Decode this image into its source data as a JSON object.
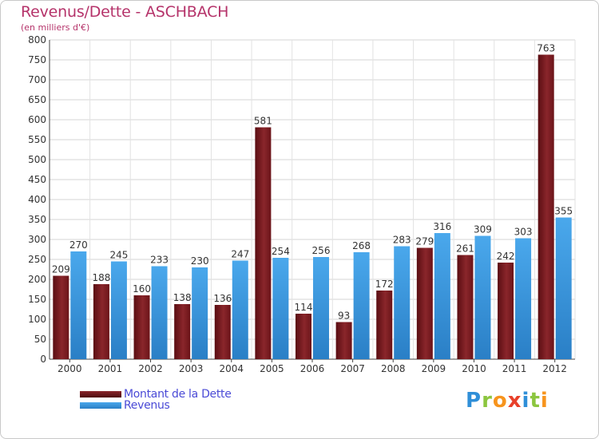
{
  "chart_data": {
    "type": "bar",
    "title": "Revenus/Dette - ASCHBACH",
    "subtitle": "(en milliers d'€)",
    "categories": [
      "2000",
      "2001",
      "2002",
      "2003",
      "2004",
      "2005",
      "2006",
      "2007",
      "2008",
      "2009",
      "2010",
      "2011",
      "2012"
    ],
    "series": [
      {
        "name": "Montant de la Dette",
        "color": "#7a1a1f",
        "values": [
          209,
          188,
          160,
          138,
          136,
          581,
          114,
          93,
          172,
          279,
          261,
          242,
          763
        ]
      },
      {
        "name": "Revenus",
        "color": "#3a96dc",
        "values": [
          270,
          245,
          233,
          230,
          247,
          254,
          256,
          268,
          283,
          316,
          309,
          303,
          355
        ]
      }
    ],
    "ylim": [
      0,
      800
    ],
    "yticks": [
      0,
      50,
      100,
      150,
      200,
      250,
      300,
      350,
      400,
      450,
      500,
      550,
      600,
      650,
      700,
      750,
      800
    ],
    "grid": true,
    "legend": "bottom-left"
  },
  "logo": {
    "text": "Proxiti",
    "letters": [
      {
        "ch": "P",
        "color": "#2f8fd8"
      },
      {
        "ch": "r",
        "color": "#8cc63f"
      },
      {
        "ch": "o",
        "color": "#f7941d"
      },
      {
        "ch": "x",
        "color": "#e8402a"
      },
      {
        "ch": "i",
        "color": "#2f8fd8"
      },
      {
        "ch": "t",
        "color": "#8cc63f"
      },
      {
        "ch": "i",
        "color": "#f7941d"
      }
    ]
  }
}
